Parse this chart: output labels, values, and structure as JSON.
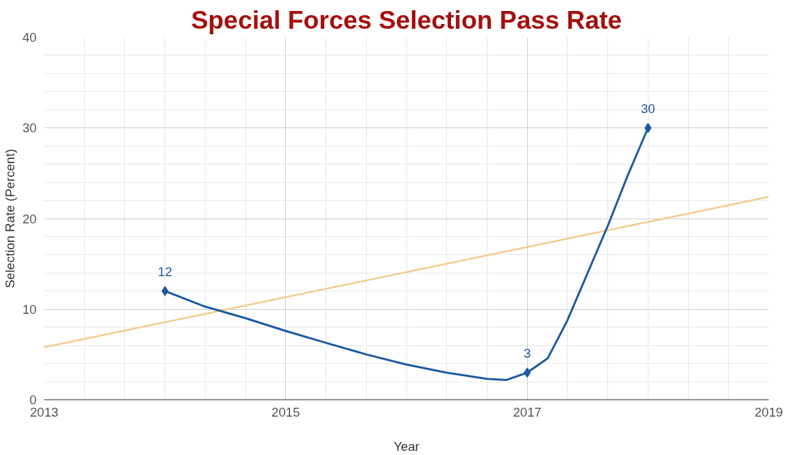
{
  "chart_data": {
    "type": "line",
    "title": "Special Forces Selection Pass Rate",
    "xlabel": "Year",
    "ylabel": "Selection Rate (Percent)",
    "xlim": [
      2013,
      2019
    ],
    "xticks": [
      2013,
      2015,
      2017,
      2019
    ],
    "ylim": [
      0,
      40
    ],
    "yticks": [
      0,
      10,
      20,
      30,
      40
    ],
    "grid": true,
    "marker": "none",
    "series": [
      {
        "color": "#1c5aa0",
        "x": [
          2014,
          2014.33,
          2014.67,
          2015,
          2015.33,
          2015.67,
          2016,
          2016.33,
          2016.67,
          2016.83,
          2017,
          2017.17,
          2017.33,
          2017.5,
          2017.67,
          2017.83,
          2018
        ],
        "values": [
          12,
          10.3,
          9,
          7.6,
          6.3,
          5,
          3.9,
          3,
          2.3,
          2.2,
          3,
          4.6,
          8.7,
          14,
          19.3,
          24.7,
          30
        ]
      },
      {
        "type": "scatter",
        "marker": "diamond",
        "color": "#1c5aa0",
        "x": [
          2014,
          2017,
          2018
        ],
        "values": [
          12,
          3,
          30
        ],
        "value_labels": [
          "12",
          "3",
          "30"
        ]
      },
      {
        "color": "#f5c98c",
        "x": [
          2013,
          2019
        ],
        "values": [
          5.8,
          22.4
        ]
      }
    ]
  }
}
